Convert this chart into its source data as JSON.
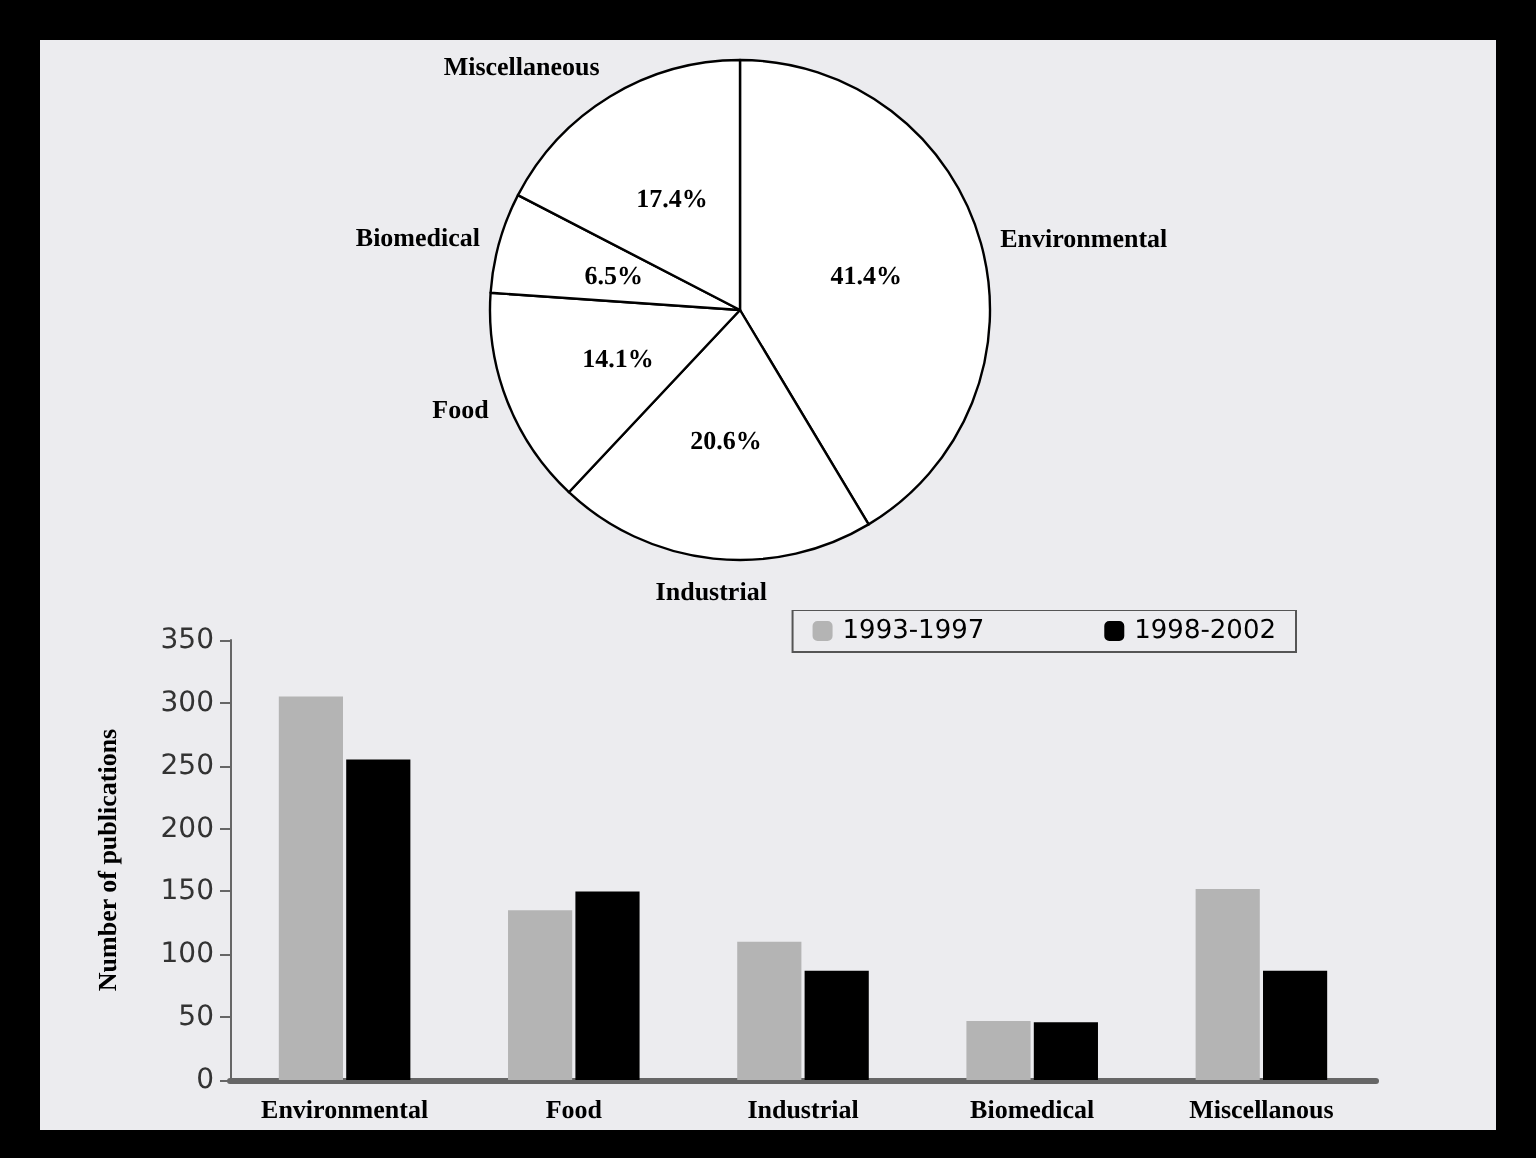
{
  "chart_data": [
    {
      "type": "pie",
      "categories": [
        "Environmental",
        "Industrial",
        "Food",
        "Biomedical",
        "Miscellaneous"
      ],
      "values": [
        41.4,
        20.6,
        14.1,
        6.5,
        17.4
      ],
      "value_labels": [
        "41.4%",
        "20.6%",
        "14.1%",
        "6.5%",
        "17.4%"
      ],
      "colors": [
        "#ffffff",
        "#ffffff",
        "#ffffff",
        "#ffffff",
        "#ffffff"
      ],
      "legend": false
    },
    {
      "type": "bar",
      "categories": [
        "Environmental",
        "Food",
        "Industrial",
        "Biomedical",
        "Miscellanous"
      ],
      "ylabel": "Number of publications",
      "ylim": [
        0,
        350
      ],
      "yticks": [
        0,
        50,
        100,
        150,
        200,
        250,
        300,
        350
      ],
      "grid": false,
      "legend": "top right",
      "series": [
        {
          "name": "1993-1997",
          "color": "#b4b4b4",
          "values": [
            305,
            135,
            110,
            47,
            152
          ]
        },
        {
          "name": "1998-2002",
          "color": "#000000",
          "values": [
            255,
            150,
            87,
            46,
            87
          ]
        }
      ]
    }
  ]
}
